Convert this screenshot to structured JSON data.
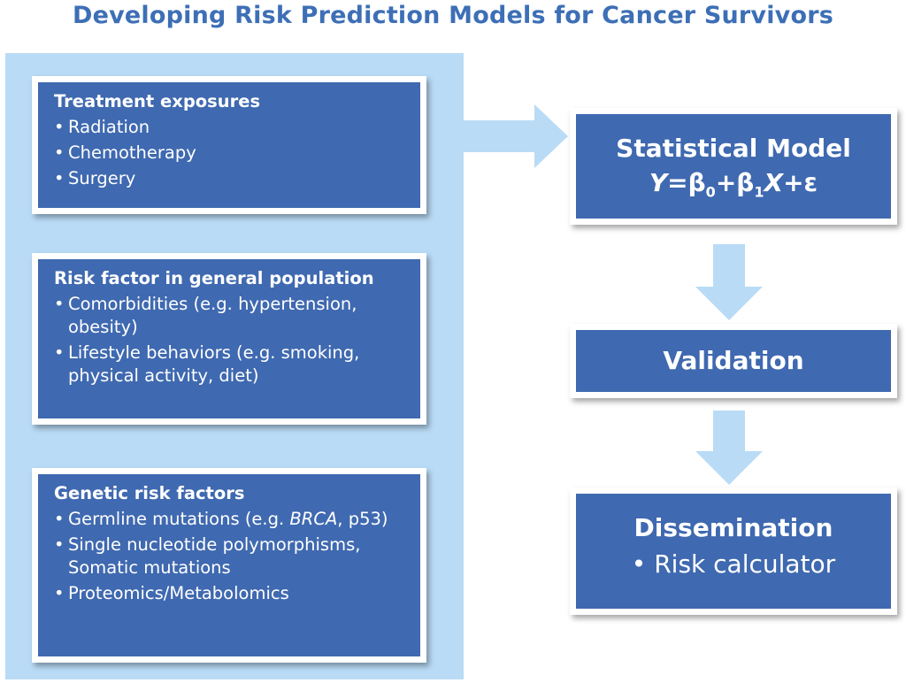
{
  "title": "Developing Risk Prediction Models for Cancer Survivors",
  "colors": {
    "title": "#3d6fb6",
    "panel": "#b9dbf6",
    "box": "#3f69b0",
    "arrow": "#b9dbf6"
  },
  "inputs": [
    {
      "heading": "Treatment exposures",
      "items": [
        "Radiation",
        "Chemotherapy",
        "Surgery"
      ]
    },
    {
      "heading": "Risk factor in general population",
      "items": [
        "Comorbidities (e.g. hypertension, obesity)",
        "Lifestyle behaviors (e.g. smoking, physical activity, diet)"
      ]
    },
    {
      "heading": "Genetic risk factors",
      "items": [
        {
          "prefix": "Germline mutations (e.g. ",
          "italic": "BRCA",
          "suffix": ", p53)"
        },
        "Single nucleotide polymorphisms, Somatic mutations",
        "Proteomics/Metabolomics"
      ]
    }
  ],
  "model": {
    "title": "Statistical Model",
    "formula": {
      "y": "Y",
      "eq": "=β",
      "sub0": "0",
      "plus": "+β",
      "sub1": "1",
      "x": "X",
      "end": "+ε"
    }
  },
  "validation": {
    "title": "Validation"
  },
  "dissemination": {
    "title": "Dissemination",
    "item": "Risk calculator"
  }
}
